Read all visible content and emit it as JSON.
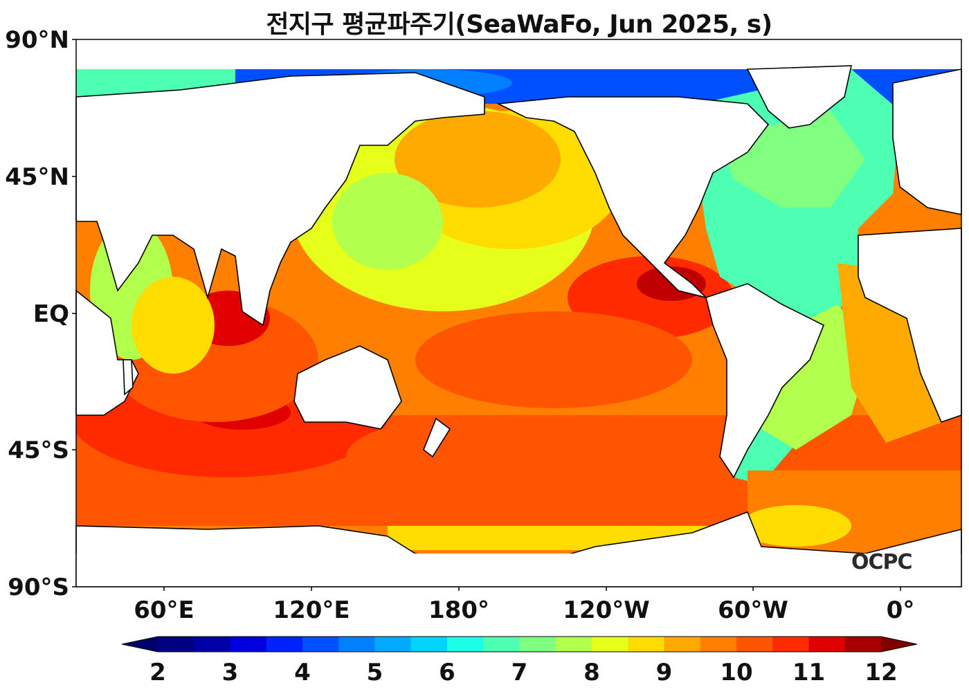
{
  "title": "전지구 평균파주기(SeaWaFo, Jun 2025, s)",
  "watermark": "OCPC",
  "lat_labels": [
    "90°N",
    "45°N",
    "EQ",
    "45°S",
    "90°S"
  ],
  "lon_labels": [
    "60°E",
    "120°E",
    "180°",
    "120°W",
    "60°W",
    "0°"
  ],
  "colorbar": {
    "min": 2,
    "max": 12,
    "step": 0.5,
    "extend": "both",
    "tick_labels": [
      "2",
      "3",
      "4",
      "5",
      "6",
      "7",
      "8",
      "9",
      "10",
      "11",
      "12"
    ],
    "colors": [
      "#000080",
      "#0000a8",
      "#0000e0",
      "#0022ff",
      "#0050ff",
      "#0080ff",
      "#00aaff",
      "#00d4ff",
      "#1affe6",
      "#4dffb3",
      "#80ff80",
      "#b3ff4d",
      "#e6ff1a",
      "#ffdd00",
      "#ffaa00",
      "#ff8000",
      "#ff5500",
      "#ff2a00",
      "#e00000",
      "#a80000"
    ],
    "under_color": "#00006a",
    "over_color": "#800000"
  },
  "land_color": "#ffffff",
  "coast_color": "#000000"
}
